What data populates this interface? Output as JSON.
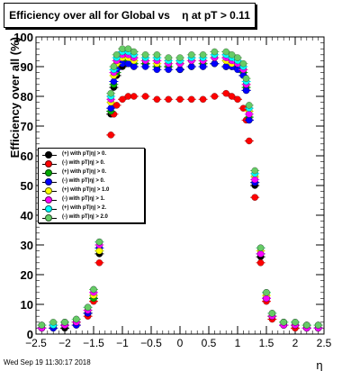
{
  "title": "Efficiency over all for Global vs    η at pT > 0.11",
  "timestamp": "Wed Sep 19 11:30:17 2018",
  "colors": {
    "black": "#000000",
    "red": "#ff0000",
    "blue": "#0000ff",
    "cyan": "#00ffff",
    "yellow": "#ffff00",
    "magenta": "#ff00ff",
    "green": "#66cc66"
  },
  "chart_data": {
    "type": "scatter",
    "title": "Efficiency over all for Global vs    η at pT > 0.11",
    "xlabel": "η",
    "ylabel": "Efficiency over all (%)",
    "xlim": [
      -2.5,
      2.5
    ],
    "ylim": [
      0,
      100
    ],
    "x_ticks": [
      "−2.5",
      "−2",
      "−1.5",
      "−1",
      "−0.5",
      "0",
      "0.5",
      "1",
      "1.5",
      "2",
      "2.5"
    ],
    "y_ticks": [
      "0",
      "10",
      "20",
      "30",
      "40",
      "50",
      "60",
      "70",
      "80",
      "90",
      "100"
    ],
    "legend": [
      {
        "label": "(+) with pT|η| > 0.",
        "color": "#000000"
      },
      {
        "label": "(-) with pT|η| > 0.",
        "color": "#ff0000"
      },
      {
        "label": "(+) with pT|η| > 0.",
        "color": "#00aa00"
      },
      {
        "label": "(-) with pT|η| > 0.",
        "color": "#0000ff"
      },
      {
        "label": "(+) with pT|η| > 1.0",
        "color": "#ffff00"
      },
      {
        "label": "(-) with pT|η| > 1.",
        "color": "#ff00ff"
      },
      {
        "label": "(+) with pT|η| > 2.",
        "color": "#00ffff"
      },
      {
        "label": "(-) with pT|η| > 2.0",
        "color": "#66cc66"
      }
    ],
    "x": [
      -2.4,
      -2.2,
      -2.0,
      -1.8,
      -1.6,
      -1.5,
      -1.4,
      -1.3,
      -1.2,
      -1.15,
      -1.1,
      -1.0,
      -0.9,
      -0.8,
      -0.6,
      -0.4,
      -0.2,
      0.0,
      0.2,
      0.4,
      0.6,
      0.8,
      0.9,
      1.0,
      1.1,
      1.15,
      1.2,
      1.3,
      1.4,
      1.5,
      1.6,
      1.8,
      2.0,
      2.2,
      2.4
    ],
    "series": [
      {
        "name": "(+) with pT|η| > 0.",
        "color": "#000000",
        "values": [
          2,
          3,
          2,
          4,
          7,
          12,
          27,
          52,
          74,
          83,
          87,
          90,
          91,
          90,
          91,
          90,
          90,
          89,
          90,
          90,
          91,
          90,
          90,
          90,
          87,
          82,
          72,
          50,
          26,
          12,
          6,
          3,
          3,
          2,
          2
        ]
      },
      {
        "name": "(-) with pT|η| > 0.",
        "color": "#ff0000",
        "values": [
          2,
          2,
          3,
          3,
          6,
          11,
          24,
          47,
          67,
          74,
          77,
          79,
          80,
          80,
          80,
          79,
          79,
          79,
          79,
          79,
          80,
          81,
          80,
          79,
          76,
          72,
          65,
          46,
          24,
          11,
          5,
          3,
          2,
          2,
          2
        ]
      },
      {
        "name": "(+) with pT|η| > 0.",
        "color": "#00aa00",
        "values": [
          2,
          3,
          3,
          4,
          7,
          12,
          28,
          53,
          75,
          84,
          88,
          91,
          92,
          91,
          91,
          90,
          90,
          89,
          90,
          91,
          91,
          90,
          90,
          90,
          88,
          83,
          73,
          51,
          27,
          12,
          6,
          4,
          3,
          3,
          2
        ]
      },
      {
        "name": "(-) with pT|η| > 0.",
        "color": "#0000ff",
        "values": [
          2,
          2,
          3,
          3,
          7,
          13,
          29,
          55,
          76,
          85,
          89,
          91,
          91,
          90,
          90,
          89,
          89,
          89,
          90,
          90,
          91,
          90,
          90,
          89,
          87,
          82,
          72,
          51,
          27,
          12,
          6,
          3,
          3,
          2,
          2
        ]
      },
      {
        "name": "(+) with pT|η| > 1.0",
        "color": "#ffff00",
        "values": [
          3,
          3,
          4,
          4,
          8,
          13,
          28,
          54,
          78,
          87,
          91,
          93,
          93,
          92,
          92,
          91,
          91,
          91,
          92,
          92,
          93,
          92,
          91,
          91,
          89,
          84,
          75,
          53,
          28,
          13,
          6,
          4,
          3,
          3,
          3
        ]
      },
      {
        "name": "(-) with pT|η| > 1.",
        "color": "#ff00ff",
        "values": [
          2,
          3,
          3,
          4,
          8,
          14,
          30,
          55,
          79,
          88,
          92,
          94,
          94,
          93,
          92,
          92,
          91,
          91,
          92,
          92,
          93,
          93,
          92,
          91,
          89,
          84,
          74,
          52,
          27,
          12,
          6,
          3,
          3,
          2,
          2
        ]
      },
      {
        "name": "(+) with pT|η| > 2.",
        "color": "#00ffff",
        "values": [
          3,
          3,
          4,
          5,
          9,
          15,
          31,
          57,
          80,
          89,
          93,
          95,
          95,
          94,
          93,
          93,
          92,
          92,
          93,
          93,
          94,
          94,
          93,
          92,
          90,
          85,
          76,
          54,
          29,
          14,
          7,
          4,
          4,
          3,
          3
        ]
      },
      {
        "name": "(-) with pT|η| > 2.0",
        "color": "#66cc66",
        "values": [
          3,
          4,
          4,
          5,
          9,
          15,
          31,
          58,
          81,
          90,
          94,
          96,
          96,
          95,
          94,
          94,
          93,
          93,
          94,
          94,
          95,
          95,
          94,
          93,
          91,
          86,
          77,
          55,
          29,
          14,
          7,
          4,
          4,
          3,
          3
        ]
      }
    ]
  }
}
